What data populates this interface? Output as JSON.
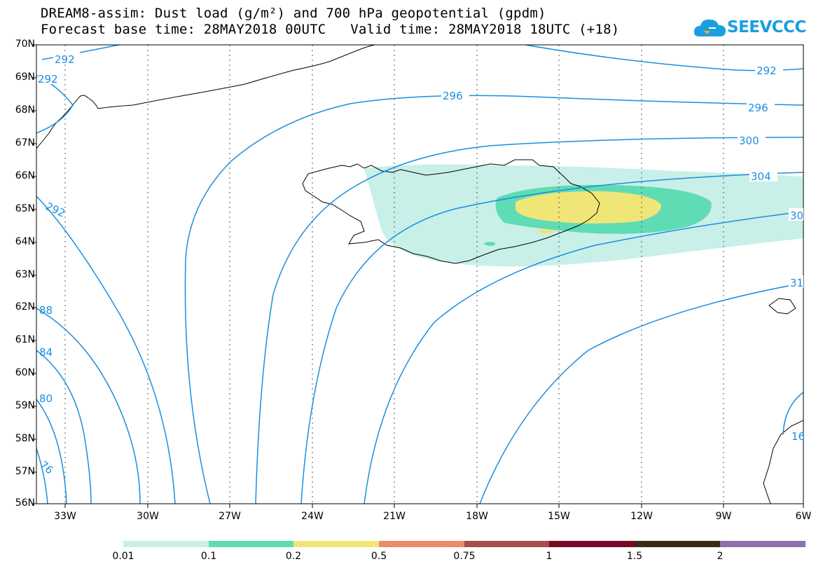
{
  "header": {
    "title_line1": "DREAM8-assim: Dust load (g/m²) and 700 hPa geopotential (gpdm)",
    "title_line2": "Forecast base time: 28MAY2018 00UTC   Valid time: 28MAY2018 18UTC (+18)"
  },
  "logo": {
    "text": "SEEVCCC",
    "icon": "cloud-icon",
    "color": "#1a9fe0"
  },
  "map": {
    "lat_labels": [
      "70N",
      "69N",
      "68N",
      "67N",
      "66N",
      "65N",
      "64N",
      "63N",
      "62N",
      "61N",
      "60N",
      "59N",
      "58N",
      "57N",
      "56N"
    ],
    "lon_labels": [
      "33W",
      "30W",
      "27W",
      "24W",
      "21W",
      "18W",
      "15W",
      "12W",
      "9W",
      "6W"
    ],
    "contour_labels": [
      "292",
      "292",
      "296",
      "296",
      "300",
      "304",
      "30",
      "31",
      "292",
      "292",
      "88",
      "84",
      "80",
      "76",
      "16"
    ],
    "colors": {
      "contour": "#1a8fe0",
      "coast": "#000000",
      "dust_0_01": "#c8f0e8",
      "dust_0_1": "#5fdcb4",
      "dust_0_2": "#f0e678"
    }
  },
  "colorbar": {
    "labels": [
      "0.01",
      "0.1",
      "0.2",
      "0.5",
      "0.75",
      "1",
      "1.5",
      "2"
    ],
    "colors": [
      "#c8f0e8",
      "#5fdcb4",
      "#f0e678",
      "#e88c6a",
      "#a84c4c",
      "#780a28",
      "#3a2a14",
      "#9070a8"
    ]
  }
}
